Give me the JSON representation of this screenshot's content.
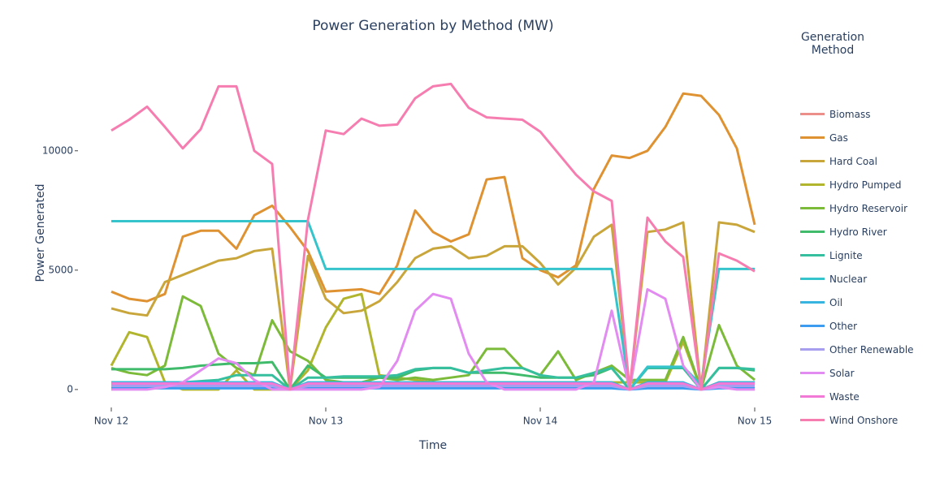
{
  "chart_data": {
    "type": "line",
    "title": "Power Generation by Method (MW)",
    "x_label": "Time",
    "y_label": "Power Generated",
    "legend_title": "Generation Method",
    "categories": [
      "Nov 12",
      null,
      null,
      null,
      null,
      null,
      null,
      null,
      null,
      null,
      null,
      null,
      "Nov 13",
      null,
      null,
      null,
      null,
      null,
      null,
      null,
      null,
      null,
      null,
      null,
      "Nov 14",
      null,
      null,
      null,
      null,
      null,
      null,
      null,
      null,
      null,
      null,
      null,
      "Nov 15"
    ],
    "ylim": [
      -650,
      13800
    ],
    "yticks": [
      0,
      5000,
      10000
    ],
    "grid": false,
    "series": [
      {
        "name": "Biomass",
        "color": "#ec8f8a",
        "values": [
          280,
          280,
          280,
          280,
          280,
          280,
          280,
          280,
          280,
          280,
          0,
          280,
          280,
          280,
          280,
          280,
          280,
          280,
          280,
          280,
          280,
          280,
          280,
          280,
          280,
          280,
          280,
          280,
          280,
          0,
          280,
          280,
          280,
          0,
          280,
          280,
          280
        ]
      },
      {
        "name": "Gas",
        "color": "#df9232",
        "values": [
          4100,
          3800,
          3700,
          4000,
          6400,
          6650,
          6650,
          5900,
          7300,
          7700,
          6800,
          5800,
          4100,
          4150,
          4200,
          4000,
          5200,
          7500,
          6600,
          6200,
          6500,
          8800,
          8900,
          5500,
          5000,
          4700,
          5200,
          8400,
          9800,
          9700,
          10000,
          11000,
          12400,
          12300,
          11500,
          10100,
          6900
        ]
      },
      {
        "name": "Hard Coal",
        "color": "#c9a63c",
        "values": [
          3400,
          3200,
          3100,
          4500,
          4800,
          5100,
          5400,
          5500,
          5800,
          5900,
          0,
          5600,
          3800,
          3200,
          3300,
          3700,
          4500,
          5500,
          5900,
          6000,
          5500,
          5600,
          6000,
          6000,
          5300,
          4400,
          5100,
          6400,
          6900,
          0,
          6600,
          6700,
          7000,
          0,
          7000,
          6900,
          6600
        ]
      },
      {
        "name": "Hydro Pumped",
        "color": "#b1b52e",
        "values": [
          1000,
          2400,
          2200,
          300,
          0,
          0,
          0,
          800,
          0,
          0,
          0,
          800,
          2600,
          3800,
          4000,
          600,
          500,
          400,
          300,
          300,
          300,
          300,
          300,
          300,
          300,
          300,
          300,
          300,
          300,
          300,
          300,
          300,
          2000,
          0,
          300,
          300,
          300
        ]
      },
      {
        "name": "Hydro Reservoir",
        "color": "#7cba3a",
        "values": [
          900,
          700,
          600,
          1000,
          3900,
          3500,
          1500,
          900,
          600,
          2900,
          1600,
          1200,
          400,
          300,
          300,
          500,
          400,
          500,
          400,
          500,
          600,
          1700,
          1700,
          900,
          600,
          1600,
          400,
          700,
          1000,
          400,
          400,
          400,
          2200,
          0,
          2700,
          1000,
          400
        ]
      },
      {
        "name": "Hydro River",
        "color": "#3fbb6b",
        "values": [
          850,
          850,
          850,
          850,
          900,
          1000,
          1050,
          1100,
          1100,
          1150,
          0,
          1000,
          500,
          500,
          500,
          500,
          500,
          800,
          900,
          900,
          700,
          700,
          700,
          600,
          500,
          500,
          500,
          600,
          900,
          0,
          900,
          900,
          900,
          0,
          900,
          900,
          800
        ]
      },
      {
        "name": "Lignite",
        "color": "#36bf9f",
        "values": [
          300,
          300,
          300,
          300,
          300,
          350,
          400,
          600,
          600,
          600,
          0,
          500,
          500,
          550,
          550,
          550,
          600,
          850,
          900,
          900,
          700,
          800,
          900,
          900,
          600,
          500,
          500,
          700,
          900,
          0,
          900,
          900,
          900,
          0,
          900,
          900,
          850
        ]
      },
      {
        "name": "Nuclear",
        "color": "#35c4cb",
        "values": [
          7050,
          7050,
          7050,
          7050,
          7050,
          7050,
          7050,
          7050,
          7050,
          7050,
          7050,
          7050,
          5050,
          5050,
          5050,
          5050,
          5050,
          5050,
          5050,
          5050,
          5050,
          5050,
          5050,
          5050,
          5050,
          5050,
          5050,
          5050,
          5050,
          0,
          950,
          950,
          950,
          200,
          5050,
          5050,
          5050
        ]
      },
      {
        "name": "Oil",
        "color": "#38b4e0",
        "values": [
          300,
          300,
          300,
          300,
          300,
          300,
          300,
          300,
          300,
          300,
          0,
          300,
          300,
          300,
          300,
          300,
          300,
          300,
          300,
          300,
          300,
          300,
          300,
          300,
          300,
          300,
          300,
          300,
          300,
          0,
          300,
          300,
          300,
          0,
          300,
          300,
          300
        ]
      },
      {
        "name": "Other",
        "color": "#3d9cf0",
        "values": [
          50,
          50,
          50,
          50,
          50,
          50,
          50,
          50,
          50,
          50,
          0,
          50,
          50,
          50,
          50,
          50,
          50,
          50,
          50,
          50,
          50,
          50,
          50,
          50,
          50,
          50,
          50,
          50,
          50,
          0,
          50,
          50,
          50,
          0,
          50,
          50,
          50
        ]
      },
      {
        "name": "Other Renewable",
        "color": "#a89ef0",
        "values": [
          150,
          150,
          150,
          150,
          150,
          150,
          150,
          150,
          150,
          150,
          0,
          150,
          150,
          150,
          150,
          150,
          150,
          150,
          150,
          150,
          150,
          150,
          150,
          150,
          150,
          150,
          150,
          150,
          150,
          0,
          150,
          150,
          150,
          0,
          150,
          150,
          150
        ]
      },
      {
        "name": "Solar",
        "color": "#e28bf0",
        "values": [
          0,
          0,
          0,
          100,
          300,
          800,
          1300,
          1100,
          400,
          0,
          0,
          0,
          0,
          0,
          0,
          100,
          1200,
          3300,
          4000,
          3800,
          1500,
          300,
          0,
          0,
          0,
          0,
          0,
          300,
          3300,
          0,
          4200,
          3800,
          1000,
          0,
          100,
          0,
          0
        ]
      },
      {
        "name": "Waste",
        "color": "#f27ad6",
        "values": [
          250,
          250,
          250,
          250,
          250,
          250,
          250,
          250,
          250,
          250,
          0,
          250,
          250,
          250,
          250,
          250,
          250,
          250,
          250,
          250,
          250,
          250,
          250,
          250,
          250,
          250,
          250,
          250,
          250,
          0,
          250,
          250,
          250,
          0,
          250,
          250,
          250
        ]
      },
      {
        "name": "Wind Onshore",
        "color": "#f67db0",
        "values": [
          10850,
          11300,
          11850,
          11000,
          10100,
          10900,
          12700,
          12700,
          10000,
          9450,
          0,
          7100,
          10850,
          10700,
          11350,
          11050,
          11100,
          12200,
          12700,
          12800,
          11800,
          11400,
          11350,
          11300,
          10800,
          9900,
          9000,
          8300,
          7900,
          0,
          7200,
          6200,
          5550,
          0,
          5700,
          5400,
          4950
        ]
      }
    ]
  }
}
